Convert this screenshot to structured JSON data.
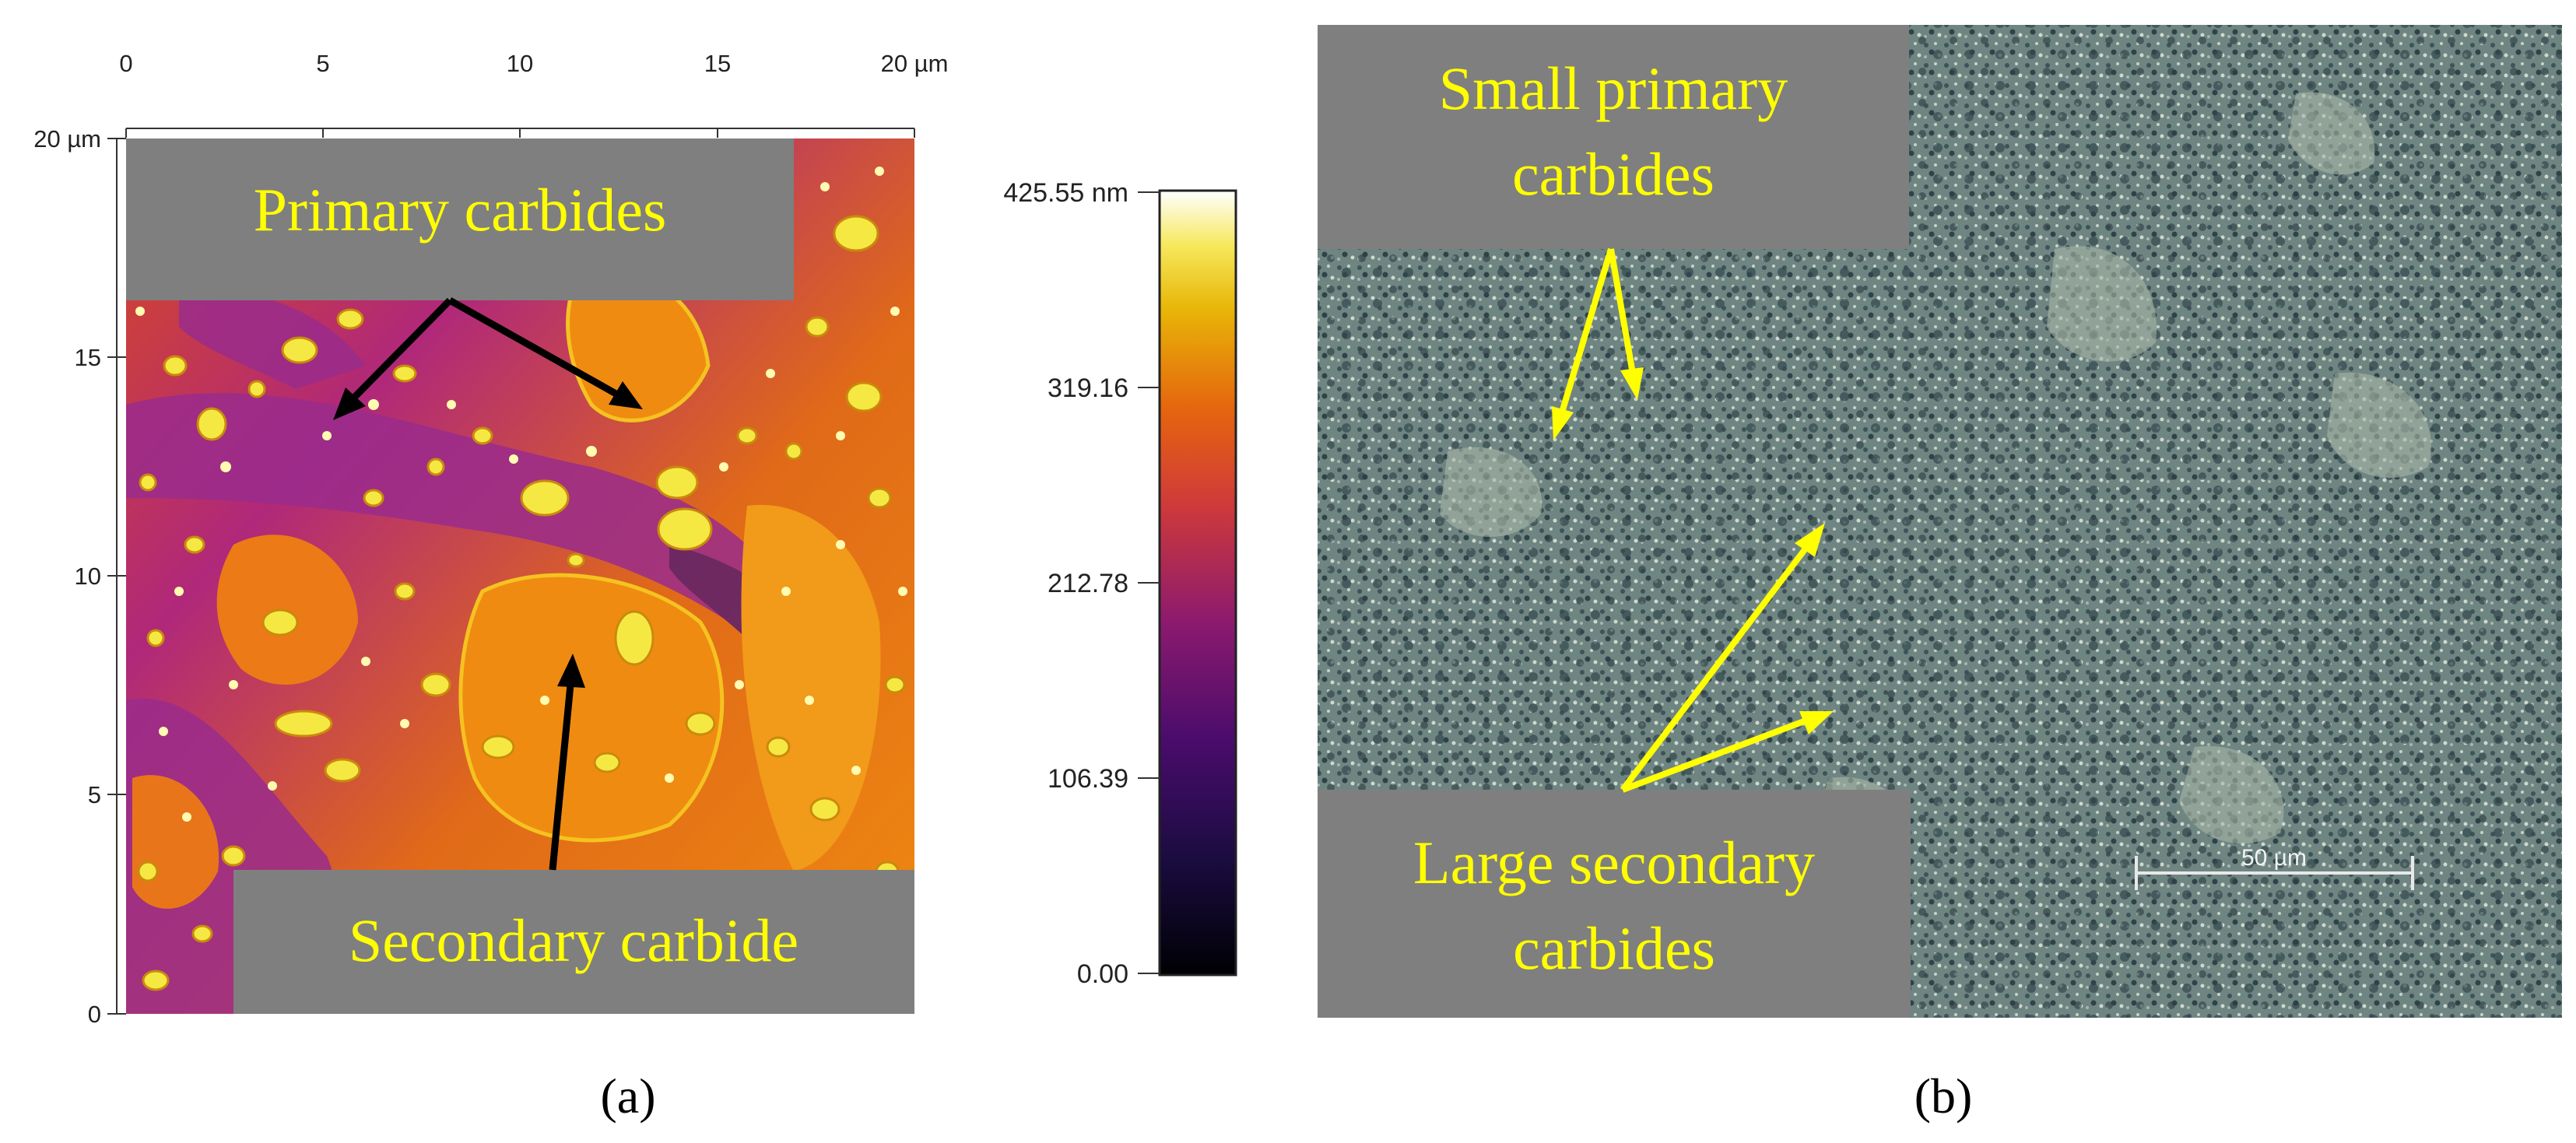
{
  "panel_a": {
    "x_ticks": [
      "0",
      "5",
      "10",
      "15",
      "20 µm"
    ],
    "y_ticks": [
      "20 µm",
      "15",
      "10",
      "5",
      "0"
    ],
    "label_primary": "Primary carbides",
    "label_secondary": "Secondary carbide",
    "colorbar_ticks": [
      "425.55 nm",
      "319.16",
      "212.78",
      "106.39",
      "0.00"
    ],
    "caption": "(a)"
  },
  "panel_b": {
    "label_small_line1": "Small primary",
    "label_small_line2": "carbides",
    "label_large_line1": "Large secondary",
    "label_large_line2": "carbides",
    "scale_bar_label": "50 µm",
    "caption": "(b)"
  },
  "colors": {
    "label_box": "#7f7f7f",
    "label_text": "#ffff00",
    "arrow_a": "#000000",
    "arrow_b": "#ffff00"
  }
}
